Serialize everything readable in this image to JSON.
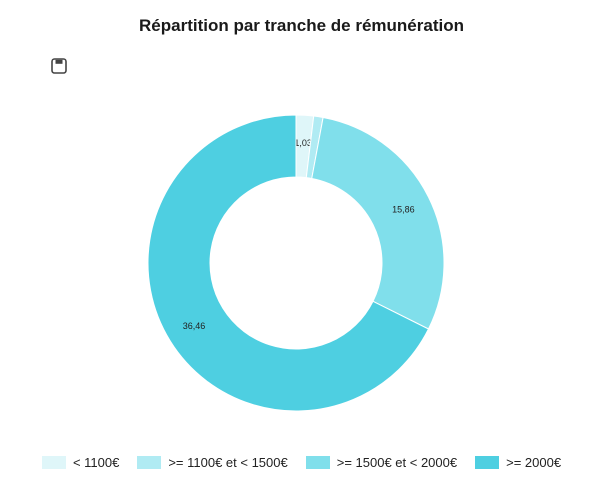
{
  "toolbar": {
    "save_icon": "save-icon"
  },
  "chart_data": {
    "type": "pie",
    "title": "Répartition par tranche de rémunération",
    "donut": true,
    "legend_position": "bottom",
    "categories": [
      "< 1100€",
      ">= 1100€ et < 1500€",
      ">= 1500€ et < 2000€",
      ">= 2000€"
    ],
    "values": [
      1.03,
      0.55,
      15.86,
      36.46
    ],
    "data_labels": [
      "1,03",
      "",
      "15,86",
      "36,46"
    ],
    "colors": [
      "#dff6f9",
      "#b0ebf3",
      "#80dfeb",
      "#4ecfe1"
    ]
  }
}
